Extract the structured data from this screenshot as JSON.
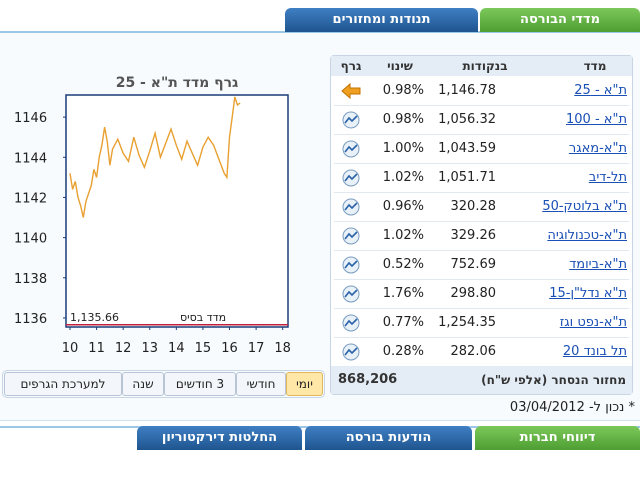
{
  "tabs_top": [
    "מדדי הבורסה",
    "תנודות ומחזורים"
  ],
  "table": {
    "headers": [
      "מדד",
      "בנקודות",
      "שינוי",
      "גרף"
    ],
    "rows": [
      [
        "ת\"א - 25",
        "1,146.78",
        "0.98%"
      ],
      [
        "ת\"א - 100",
        "1,056.32",
        "0.98%"
      ],
      [
        "ת\"א-מאגר",
        "1,043.59",
        "1.00%"
      ],
      [
        "תל-דיב",
        "1,051.71",
        "1.02%"
      ],
      [
        "ת\"א בלוטק-50",
        "320.28",
        "0.96%"
      ],
      [
        "ת\"א-טכנולוגיה",
        "329.26",
        "1.02%"
      ],
      [
        "ת\"א-ביומד",
        "752.69",
        "0.52%"
      ],
      [
        "ת\"א נדל\"ן-15",
        "298.80",
        "1.76%"
      ],
      [
        "ת\"א-נפט וגז",
        "1,254.35",
        "0.77%"
      ],
      [
        "תל בונד 20",
        "282.06",
        "0.28%"
      ]
    ],
    "footer": {
      "label": "מחזור הנסחר (אלפי ש\"ח)",
      "value": "868,206"
    }
  },
  "chart_data": {
    "type": "line",
    "title": "גרף מדד ת\"א - 25",
    "x": [
      10.0,
      10.1,
      10.2,
      10.3,
      10.4,
      10.5,
      10.6,
      10.7,
      10.8,
      10.9,
      11.0,
      11.1,
      11.2,
      11.3,
      11.4,
      11.5,
      11.6,
      11.8,
      12.0,
      12.2,
      12.4,
      12.6,
      12.8,
      13.0,
      13.2,
      13.4,
      13.6,
      13.8,
      14.0,
      14.2,
      14.4,
      14.6,
      14.8,
      15.0,
      15.2,
      15.4,
      15.6,
      15.8,
      15.9,
      16.0,
      16.1,
      16.2,
      16.3,
      16.4
    ],
    "values": [
      1143.2,
      1142.4,
      1142.8,
      1142.0,
      1141.6,
      1141.0,
      1141.8,
      1142.2,
      1142.6,
      1143.4,
      1143.0,
      1144.0,
      1144.6,
      1145.5,
      1144.8,
      1143.6,
      1144.4,
      1144.9,
      1144.2,
      1143.8,
      1145.0,
      1144.1,
      1143.5,
      1144.3,
      1145.2,
      1144.0,
      1144.7,
      1145.4,
      1144.6,
      1143.9,
      1144.8,
      1144.2,
      1143.6,
      1144.5,
      1145.0,
      1144.6,
      1143.9,
      1143.2,
      1143.0,
      1145.0,
      1146.0,
      1147.0,
      1146.6,
      1146.7
    ],
    "color": "#e8a030",
    "xlim": [
      9.85,
      18.2
    ],
    "xticks": [
      10,
      11,
      12,
      13,
      14,
      15,
      16,
      17,
      18
    ],
    "ylim": [
      1135.55,
      1147.1
    ],
    "yticks": [
      1136,
      1138,
      1140,
      1142,
      1144,
      1146
    ],
    "base_label": "מדד בסיס",
    "base_value": 1135.66,
    "base_value_label": "1,135.66"
  },
  "range_buttons": [
    "יומי",
    "חודשי",
    "3 חודשים",
    "שנה",
    "למערכת הגרפים"
  ],
  "date_note": "* נכון ל- 03/04/2012",
  "tabs_bottom": [
    "דיווחי חברות",
    "הודעות בורסה",
    "החלטות דירקטוריון"
  ]
}
